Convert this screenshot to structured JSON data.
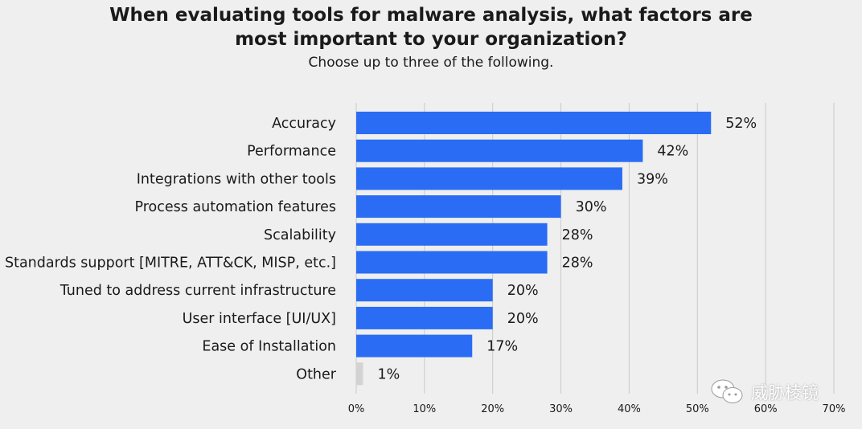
{
  "title_lines": [
    "When evaluating tools for malware analysis, what factors are",
    "most important to your organization?"
  ],
  "subtitle": "Choose up to three of the following.",
  "watermark": {
    "text": "威胁棱镜",
    "icon": "wechat-icon"
  },
  "colors": {
    "bar": "#2a6df4",
    "bar_small": "#d3d3d3",
    "grid": "#c9c9c9",
    "background": "#efefef"
  },
  "chart_data": {
    "type": "bar",
    "orientation": "horizontal",
    "categories": [
      "Accuracy",
      "Performance",
      "Integrations with other tools",
      "Process automation features",
      "Scalability",
      "Standards support [MITRE, ATT&CK, MISP, etc.]",
      "Tuned to address current infrastructure",
      "User interface [UI/UX]",
      "Ease of Installation",
      "Other"
    ],
    "values": [
      52,
      42,
      39,
      30,
      28,
      28,
      20,
      20,
      17,
      1
    ],
    "value_labels": [
      "52%",
      "42%",
      "39%",
      "30%",
      "28%",
      "28%",
      "20%",
      "20%",
      "17%",
      "1%"
    ],
    "xlim": [
      0,
      70
    ],
    "xticks": [
      0,
      10,
      20,
      30,
      40,
      50,
      60,
      70
    ],
    "xtick_labels": [
      "0%",
      "10%",
      "20%",
      "30%",
      "40%",
      "50%",
      "60%",
      "70%"
    ],
    "grid": "vertical",
    "legend": "none"
  }
}
